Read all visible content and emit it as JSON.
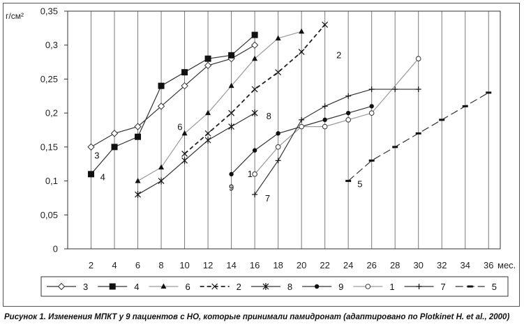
{
  "chart_data": {
    "type": "line",
    "y_unit_label": "г/см²",
    "x_unit_label": "мес.",
    "xlim": [
      0,
      37
    ],
    "ylim": [
      0,
      0.35
    ],
    "x_ticks": [
      2,
      4,
      6,
      8,
      10,
      12,
      14,
      16,
      18,
      20,
      22,
      24,
      26,
      28,
      30,
      32,
      34,
      36
    ],
    "y_ticks": [
      0,
      0.05,
      0.1,
      0.15,
      0.2,
      0.25,
      0.3,
      0.35
    ],
    "y_tick_labels": [
      "0",
      "0,05",
      "0,1",
      "0,15",
      "0,2",
      "0,25",
      "0,3",
      "0,35"
    ],
    "grid": "vertical",
    "legend_position": "bottom",
    "series": [
      {
        "name": "3",
        "marker": "diamond-open",
        "line": "solid",
        "color": "#333333",
        "x": [
          2,
          4,
          6,
          8,
          10,
          12,
          14,
          16
        ],
        "y": [
          0.15,
          0.17,
          0.18,
          0.21,
          0.24,
          0.27,
          0.28,
          0.3
        ]
      },
      {
        "name": "4",
        "marker": "square-filled",
        "line": "solid",
        "color": "#333333",
        "x": [
          2,
          4,
          6,
          8,
          10,
          12,
          14,
          16
        ],
        "y": [
          0.11,
          0.15,
          0.165,
          0.24,
          0.26,
          0.28,
          0.285,
          0.315
        ]
      },
      {
        "name": "6",
        "marker": "triangle-filled",
        "line": "solid",
        "color": "#9a9a9a",
        "x": [
          6,
          8,
          10,
          12,
          14,
          16,
          18,
          20
        ],
        "y": [
          0.1,
          0.12,
          0.17,
          0.2,
          0.24,
          0.28,
          0.31,
          0.32
        ]
      },
      {
        "name": "2",
        "marker": "x",
        "line": "dashed",
        "color": "#222222",
        "x": [
          10,
          12,
          14,
          16,
          18,
          20,
          22
        ],
        "y": [
          0.14,
          0.17,
          0.2,
          0.235,
          0.26,
          0.29,
          0.33
        ]
      },
      {
        "name": "8",
        "marker": "asterisk",
        "line": "solid",
        "color": "#333333",
        "x": [
          6,
          8,
          10,
          12,
          14,
          16
        ],
        "y": [
          0.08,
          0.1,
          0.13,
          0.16,
          0.18,
          0.2
        ]
      },
      {
        "name": "9",
        "marker": "circle-filled",
        "line": "solid",
        "color": "#333333",
        "x": [
          14,
          16,
          18,
          20,
          22,
          24,
          26
        ],
        "y": [
          0.11,
          0.145,
          0.17,
          0.18,
          0.19,
          0.2,
          0.21
        ]
      },
      {
        "name": "1",
        "marker": "circle-open",
        "line": "solid",
        "color": "#9a9a9a",
        "x": [
          16,
          18,
          20,
          22,
          24,
          26,
          30
        ],
        "y": [
          0.11,
          0.15,
          0.18,
          0.18,
          0.19,
          0.2,
          0.28
        ]
      },
      {
        "name": "7",
        "marker": "plus",
        "line": "solid",
        "color": "#333333",
        "x": [
          16,
          18,
          20,
          22,
          24,
          26,
          28,
          30
        ],
        "y": [
          0.08,
          0.13,
          0.19,
          0.21,
          0.225,
          0.235,
          0.235,
          0.235
        ]
      },
      {
        "name": "5",
        "marker": "dash",
        "line": "longdash",
        "color": "#333333",
        "x": [
          24,
          26,
          28,
          30,
          32,
          34,
          36
        ],
        "y": [
          0.1,
          0.13,
          0.15,
          0.17,
          0.19,
          0.21,
          0.23
        ]
      }
    ],
    "annotations": [
      {
        "text": "3",
        "x": 2.5,
        "y": 0.137
      },
      {
        "text": "4",
        "x": 3.0,
        "y": 0.105
      },
      {
        "text": "6",
        "x": 9.6,
        "y": 0.179
      },
      {
        "text": "2",
        "x": 23.2,
        "y": 0.285
      },
      {
        "text": "8",
        "x": 17.2,
        "y": 0.195
      },
      {
        "text": "9",
        "x": 14.0,
        "y": 0.09
      },
      {
        "text": "1",
        "x": 15.6,
        "y": 0.11
      },
      {
        "text": "7",
        "x": 17.1,
        "y": 0.074
      },
      {
        "text": "5",
        "x": 25.0,
        "y": 0.095
      }
    ]
  },
  "caption": "Рисунок 1. Изменения МПКТ у 9 пациентов с НО, которые принимали памидронат (адаптировано по Plotkinet H. et al., 2000)"
}
